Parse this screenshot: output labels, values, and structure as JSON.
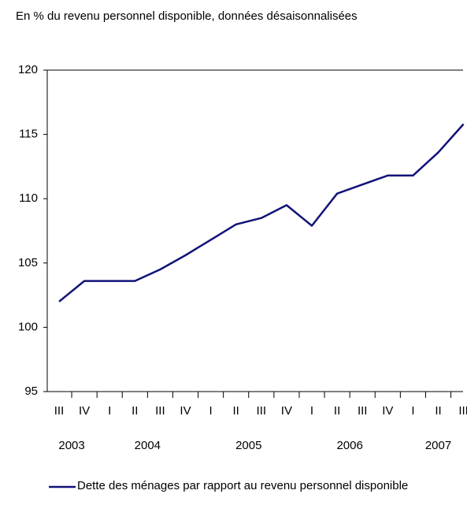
{
  "chart_data": {
    "type": "line",
    "title": "En % du revenu personnel disponible, données désaisonnalisées",
    "categories": [
      "III",
      "IV",
      "I",
      "II",
      "III",
      "IV",
      "I",
      "II",
      "III",
      "IV",
      "I",
      "II",
      "III",
      "IV",
      "I",
      "II",
      "III"
    ],
    "year_groups": [
      {
        "label": "2003",
        "size": 2
      },
      {
        "label": "2004",
        "size": 4
      },
      {
        "label": "2005",
        "size": 4
      },
      {
        "label": "2006",
        "size": 4
      },
      {
        "label": "2007",
        "size": 3
      }
    ],
    "series": [
      {
        "name": "Dette des ménages par rapport au revenu personnel disponible",
        "color": "#12127a",
        "values": [
          102.0,
          103.6,
          103.6,
          103.6,
          104.5,
          105.6,
          106.8,
          108.0,
          108.5,
          109.5,
          107.9,
          110.4,
          111.1,
          111.8,
          111.8,
          113.6,
          115.8
        ]
      }
    ],
    "ylim": [
      95,
      120
    ],
    "yticks": [
      95,
      100,
      105,
      110,
      115,
      120
    ],
    "grid": false
  }
}
